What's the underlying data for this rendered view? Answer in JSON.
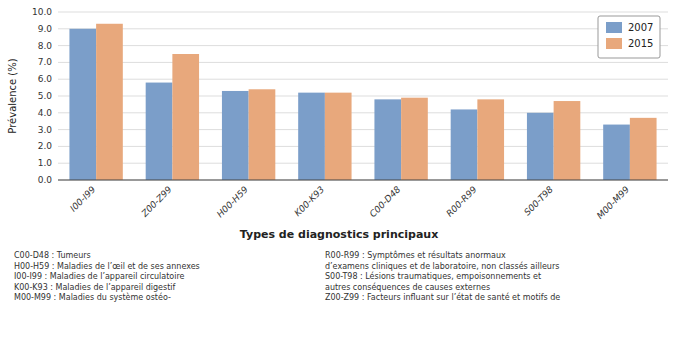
{
  "chart_data": {
    "type": "bar",
    "categories": [
      "I00-I99",
      "Z00-Z99",
      "H00-H59",
      "K00-K93",
      "C00-D48",
      "R00-R99",
      "S00-T98",
      "M00-M99"
    ],
    "series": [
      {
        "name": "2007",
        "color": "#7b9ec9",
        "values": [
          9.0,
          5.8,
          5.3,
          5.2,
          4.8,
          4.2,
          4.0,
          3.3
        ]
      },
      {
        "name": "2015",
        "color": "#e8a87c",
        "values": [
          9.3,
          7.5,
          5.4,
          5.2,
          4.9,
          4.8,
          4.7,
          3.7
        ]
      }
    ],
    "ylabel": "Prévalence (%)",
    "xlabel": "Types de diagnostics principaux",
    "ylim": [
      0.0,
      10.0
    ],
    "yticks": [
      {
        "value": 0,
        "label": "0.0"
      },
      {
        "value": 1,
        "label": "1.0"
      },
      {
        "value": 2,
        "label": "2.0"
      },
      {
        "value": 3,
        "label": "3.0"
      },
      {
        "value": 4,
        "label": "4.0"
      },
      {
        "value": 5,
        "label": "5.0"
      },
      {
        "value": 6,
        "label": "6.0"
      },
      {
        "value": 7,
        "label": "7.0"
      },
      {
        "value": 8,
        "label": "8.0"
      },
      {
        "value": 9,
        "label": "9.0"
      },
      {
        "value": 10,
        "label": "10.0"
      }
    ],
    "grid": true,
    "legend": "upper right",
    "annotations": [
      "C00-D48 : Tumeurs\nH00-H59 : Maladies de l’œil et de ses annexes\nI00-I99 : Maladies de l’appareil circulatoire\nK00-K93 : Maladies de l’appareil digestif\nM00-M99 : Maladies du système ostéo-",
      "R00-R99 : Symptômes et résultats anormaux\nd’examens cliniques et de laboratoire, non classés ailleurs\nS00-T98 : Lésions traumatiques, empoisonnements et\nautres conséquences de causes externes\nZ00-Z99 : Facteurs influant sur l’état de santé et motifs de"
    ]
  }
}
